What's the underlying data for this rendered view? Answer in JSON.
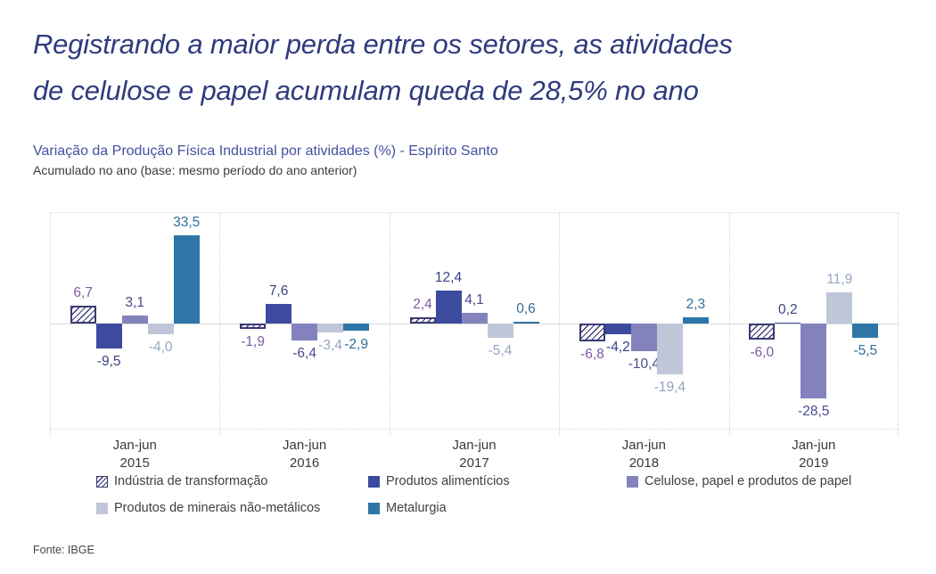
{
  "title": {
    "line1": "Registrando a maior perda entre os setores, as atividades",
    "line2": "de celulose e papel acumulam queda de 28,5% no ano",
    "color": "#2f3a7d"
  },
  "subtitle": {
    "text": "Variação da Produção Física Industrial por atividades (%) - Espírito Santo",
    "color": "#4550a0"
  },
  "subtitle2": {
    "text": "Acumulado no ano (base: mesmo período do ano anterior)"
  },
  "source": {
    "text": "Fonte: IBGE"
  },
  "chart_data": {
    "type": "bar",
    "grouped": true,
    "title": "Variação da Produção Física Industrial por atividades (%) - Espírito Santo",
    "subtitle": "Acumulado no ano (base: mesmo período do ano anterior)",
    "categories": [
      "Jan-jun 2015",
      "Jan-jun 2016",
      "Jan-jun 2017",
      "Jan-jun 2018",
      "Jan-jun 2019"
    ],
    "category_lines": [
      [
        "Jan-jun",
        "2015"
      ],
      [
        "Jan-jun",
        "2016"
      ],
      [
        "Jan-jun",
        "2017"
      ],
      [
        "Jan-jun",
        "2018"
      ],
      [
        "Jan-jun",
        "2019"
      ]
    ],
    "series": [
      {
        "name": "Indústria de transformação",
        "pattern": "hatched",
        "color": "#3b3b74",
        "label_color": "#7b5ca4",
        "values": [
          6.7,
          -1.9,
          2.4,
          -6.8,
          -6.0
        ],
        "labels": [
          "6,7",
          "-1,9",
          "2,4",
          "-6,8",
          "-6,0"
        ]
      },
      {
        "name": "Produtos alimentícios",
        "pattern": "solid",
        "color": "#3c4b9e",
        "label_color": "#3a4284",
        "values": [
          -9.5,
          7.6,
          12.4,
          -4.2,
          0.2
        ],
        "labels": [
          "-9,5",
          "7,6",
          "12,4",
          "-4,2",
          "0,2"
        ]
      },
      {
        "name": "Celulose, papel e produtos de papel",
        "pattern": "solid",
        "color": "#8482bc",
        "label_color": "#4a4a8e",
        "values": [
          3.1,
          -6.4,
          4.1,
          -10.4,
          -28.5
        ],
        "labels": [
          "3,1",
          "-6,4",
          "4,1",
          "-10,4",
          "-28,5"
        ]
      },
      {
        "name": "Produtos de minerais não-metálicos",
        "pattern": "solid",
        "color": "#bfc6d7",
        "label_color": "#93a5c1",
        "values": [
          -4.0,
          -3.4,
          -5.4,
          -19.4,
          11.9
        ],
        "labels": [
          "-4,0",
          "-3,4",
          "-5,4",
          "-19,4",
          "11,9"
        ]
      },
      {
        "name": "Metalurgia",
        "pattern": "solid",
        "color": "#2e76a8",
        "label_color": "#2e6f9e",
        "values": [
          33.5,
          -2.9,
          0.6,
          2.3,
          -5.5
        ],
        "labels": [
          "33,5",
          "-2,9",
          "0,6",
          "2,3",
          "-5,5"
        ]
      }
    ],
    "ylim": [
      -40,
      42
    ],
    "grid": "dotted vertical separators between year groups, dotted top/bottom frame, solid zero axis",
    "legend_position": "bottom",
    "legend_rows": [
      [
        0,
        1,
        2
      ],
      [
        3,
        4
      ]
    ],
    "value_label_format": "comma-decimal, one decimal place"
  }
}
